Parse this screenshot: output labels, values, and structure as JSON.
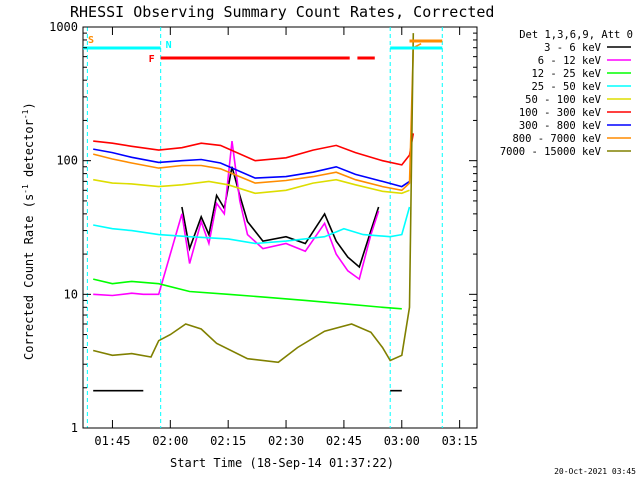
{
  "chart_data": {
    "type": "line",
    "title": "RHESSI Observing Summary Count Rates, Corrected",
    "xlabel": "Start Time (18-Sep-14 01:37:22)",
    "ylabel_prefix": "Corrected Count Rate (s",
    "ylabel_sup1": "-1",
    "ylabel_mid": " detector",
    "ylabel_sup2": "-1",
    "ylabel_suffix": ")",
    "y_scale": "log",
    "ylim": [
      1,
      1000
    ],
    "x_range": [
      "01:37:22",
      "03:19:30"
    ],
    "x_ticks": [
      "01:45",
      "02:00",
      "02:15",
      "02:30",
      "02:45",
      "03:00",
      "03:15"
    ],
    "y_ticks": [
      "1",
      "10",
      "100",
      "1000"
    ],
    "legend_header": "Det 1,3,6,9, Att 0",
    "footer_date": "20-Oct-2021 03:45",
    "series": [
      {
        "name": "3 - 6 keV",
        "color": "#000000",
        "points": [
          [
            "01:40",
            1.9
          ],
          [
            "01:53",
            1.9
          ],
          [
            "01:55",
            null
          ],
          [
            "01:57",
            null
          ],
          [
            "02:03",
            45
          ],
          [
            "02:05",
            22
          ],
          [
            "02:08",
            38
          ],
          [
            "02:10",
            28
          ],
          [
            "02:12",
            55
          ],
          [
            "02:14",
            44
          ],
          [
            "02:16",
            90
          ],
          [
            "02:18",
            55
          ],
          [
            "02:20",
            35
          ],
          [
            "02:24",
            25
          ],
          [
            "02:30",
            27
          ],
          [
            "02:35",
            24
          ],
          [
            "02:40",
            40
          ],
          [
            "02:43",
            25
          ],
          [
            "02:46",
            19
          ],
          [
            "02:49",
            16
          ],
          [
            "02:52",
            30
          ],
          [
            "02:54",
            45
          ],
          [
            "02:55",
            null
          ],
          [
            "02:57",
            1.9
          ],
          [
            "03:00",
            1.9
          ]
        ]
      },
      {
        "name": "6 - 12 keV",
        "color": "#ff00ff",
        "points": [
          [
            "01:40",
            10
          ],
          [
            "01:45",
            9.8
          ],
          [
            "01:50",
            10.2
          ],
          [
            "01:53",
            10
          ],
          [
            "01:57",
            10
          ],
          [
            "02:03",
            40
          ],
          [
            "02:05",
            17
          ],
          [
            "02:08",
            35
          ],
          [
            "02:10",
            24
          ],
          [
            "02:12",
            48
          ],
          [
            "02:14",
            40
          ],
          [
            "02:16",
            140
          ],
          [
            "02:18",
            50
          ],
          [
            "02:20",
            28
          ],
          [
            "02:24",
            22
          ],
          [
            "02:30",
            24
          ],
          [
            "02:35",
            21
          ],
          [
            "02:40",
            34
          ],
          [
            "02:43",
            20
          ],
          [
            "02:46",
            15
          ],
          [
            "02:49",
            13
          ],
          [
            "02:52",
            28
          ],
          [
            "02:54",
            42
          ],
          [
            "02:55",
            null
          ],
          [
            "03:00",
            null
          ]
        ]
      },
      {
        "name": "12 - 25 keV",
        "color": "#00ff00",
        "points": [
          [
            "01:40",
            13
          ],
          [
            "01:45",
            12
          ],
          [
            "01:50",
            12.5
          ],
          [
            "01:57",
            12
          ],
          [
            "02:05",
            10.5
          ],
          [
            "02:15",
            10
          ],
          [
            "02:25",
            9.5
          ],
          [
            "02:35",
            9
          ],
          [
            "02:45",
            8.5
          ],
          [
            "02:55",
            8
          ],
          [
            "03:00",
            7.8
          ]
        ]
      },
      {
        "name": "25 - 50 keV",
        "color": "#00ffff",
        "points": [
          [
            "01:40",
            33
          ],
          [
            "01:45",
            31
          ],
          [
            "01:50",
            30
          ],
          [
            "01:57",
            28
          ],
          [
            "02:05",
            27
          ],
          [
            "02:15",
            26
          ],
          [
            "02:22",
            24
          ],
          [
            "02:30",
            25
          ],
          [
            "02:40",
            27
          ],
          [
            "02:45",
            31
          ],
          [
            "02:50",
            28
          ],
          [
            "02:57",
            27
          ],
          [
            "03:00",
            28
          ],
          [
            "03:02",
            45
          ]
        ]
      },
      {
        "name": "50 - 100 keV",
        "color": "#dddd00",
        "points": [
          [
            "01:40",
            72
          ],
          [
            "01:45",
            68
          ],
          [
            "01:50",
            67
          ],
          [
            "01:57",
            64
          ],
          [
            "02:03",
            66
          ],
          [
            "02:10",
            70
          ],
          [
            "02:15",
            66
          ],
          [
            "02:22",
            57
          ],
          [
            "02:30",
            60
          ],
          [
            "02:37",
            68
          ],
          [
            "02:43",
            72
          ],
          [
            "02:48",
            66
          ],
          [
            "02:55",
            59
          ],
          [
            "03:00",
            57
          ],
          [
            "03:02",
            60
          ]
        ]
      },
      {
        "name": "100 - 300 keV",
        "color": "#ff0000",
        "points": [
          [
            "01:40",
            140
          ],
          [
            "01:45",
            135
          ],
          [
            "01:50",
            128
          ],
          [
            "01:57",
            120
          ],
          [
            "02:03",
            125
          ],
          [
            "02:08",
            135
          ],
          [
            "02:13",
            130
          ],
          [
            "02:22",
            100
          ],
          [
            "02:30",
            105
          ],
          [
            "02:37",
            120
          ],
          [
            "02:43",
            130
          ],
          [
            "02:48",
            115
          ],
          [
            "02:55",
            100
          ],
          [
            "03:00",
            93
          ],
          [
            "03:02",
            110
          ],
          [
            "03:03",
            160
          ]
        ]
      },
      {
        "name": "300 - 800 keV",
        "color": "#0000ff",
        "points": [
          [
            "01:40",
            122
          ],
          [
            "01:45",
            115
          ],
          [
            "01:50",
            106
          ],
          [
            "01:57",
            97
          ],
          [
            "02:03",
            100
          ],
          [
            "02:08",
            102
          ],
          [
            "02:13",
            96
          ],
          [
            "02:22",
            74
          ],
          [
            "02:30",
            76
          ],
          [
            "02:37",
            82
          ],
          [
            "02:43",
            90
          ],
          [
            "02:48",
            79
          ],
          [
            "02:55",
            70
          ],
          [
            "03:00",
            64
          ],
          [
            "03:02",
            70
          ]
        ]
      },
      {
        "name": "800 - 7000 keV",
        "color": "#ff8c00",
        "points": [
          [
            "01:40",
            112
          ],
          [
            "01:45",
            103
          ],
          [
            "01:50",
            96
          ],
          [
            "01:57",
            88
          ],
          [
            "02:03",
            92
          ],
          [
            "02:08",
            92
          ],
          [
            "02:13",
            87
          ],
          [
            "02:22",
            68
          ],
          [
            "02:30",
            71
          ],
          [
            "02:37",
            76
          ],
          [
            "02:43",
            82
          ],
          [
            "02:48",
            72
          ],
          [
            "02:55",
            64
          ],
          [
            "03:00",
            60
          ],
          [
            "03:02",
            68
          ],
          [
            "03:03",
            700
          ],
          [
            "03:05",
            750
          ]
        ]
      },
      {
        "name": "7000 - 15000 keV",
        "color": "#808000",
        "points": [
          [
            "01:40",
            3.8
          ],
          [
            "01:45",
            3.5
          ],
          [
            "01:50",
            3.6
          ],
          [
            "01:55",
            3.4
          ],
          [
            "01:57",
            4.5
          ],
          [
            "02:00",
            5
          ],
          [
            "02:04",
            6
          ],
          [
            "02:08",
            5.5
          ],
          [
            "02:12",
            4.3
          ],
          [
            "02:20",
            3.3
          ],
          [
            "02:28",
            3.1
          ],
          [
            "02:33",
            4
          ],
          [
            "02:40",
            5.3
          ],
          [
            "02:47",
            6
          ],
          [
            "02:52",
            5.2
          ],
          [
            "02:55",
            4
          ],
          [
            "02:57",
            3.2
          ],
          [
            "03:00",
            3.5
          ],
          [
            "03:02",
            8
          ],
          [
            "03:03",
            900
          ]
        ]
      }
    ],
    "flags": [
      {
        "label": "S",
        "color": "#ff8c00",
        "segments": [
          [
            "01:37:22",
            "01:38:30"
          ]
        ]
      },
      {
        "label": "N",
        "color": "#00ffff",
        "segments": [
          [
            "01:37:22",
            "01:57:30"
          ],
          [
            "02:57:00",
            "03:10:30"
          ]
        ]
      },
      {
        "label": "F",
        "color": "#ff0000",
        "segments": [
          [
            "01:57:30",
            "02:46:30"
          ],
          [
            "02:48:30",
            "02:53:00"
          ]
        ]
      },
      {
        "label": "",
        "color": "#ff8c00",
        "segments": [
          [
            "03:02:00",
            "03:10:30"
          ]
        ]
      }
    ],
    "saa_boundaries": [
      "01:38:30",
      "01:57:30",
      "02:57:00",
      "03:10:30"
    ],
    "grid": false,
    "legend_position": "top-right outside"
  }
}
